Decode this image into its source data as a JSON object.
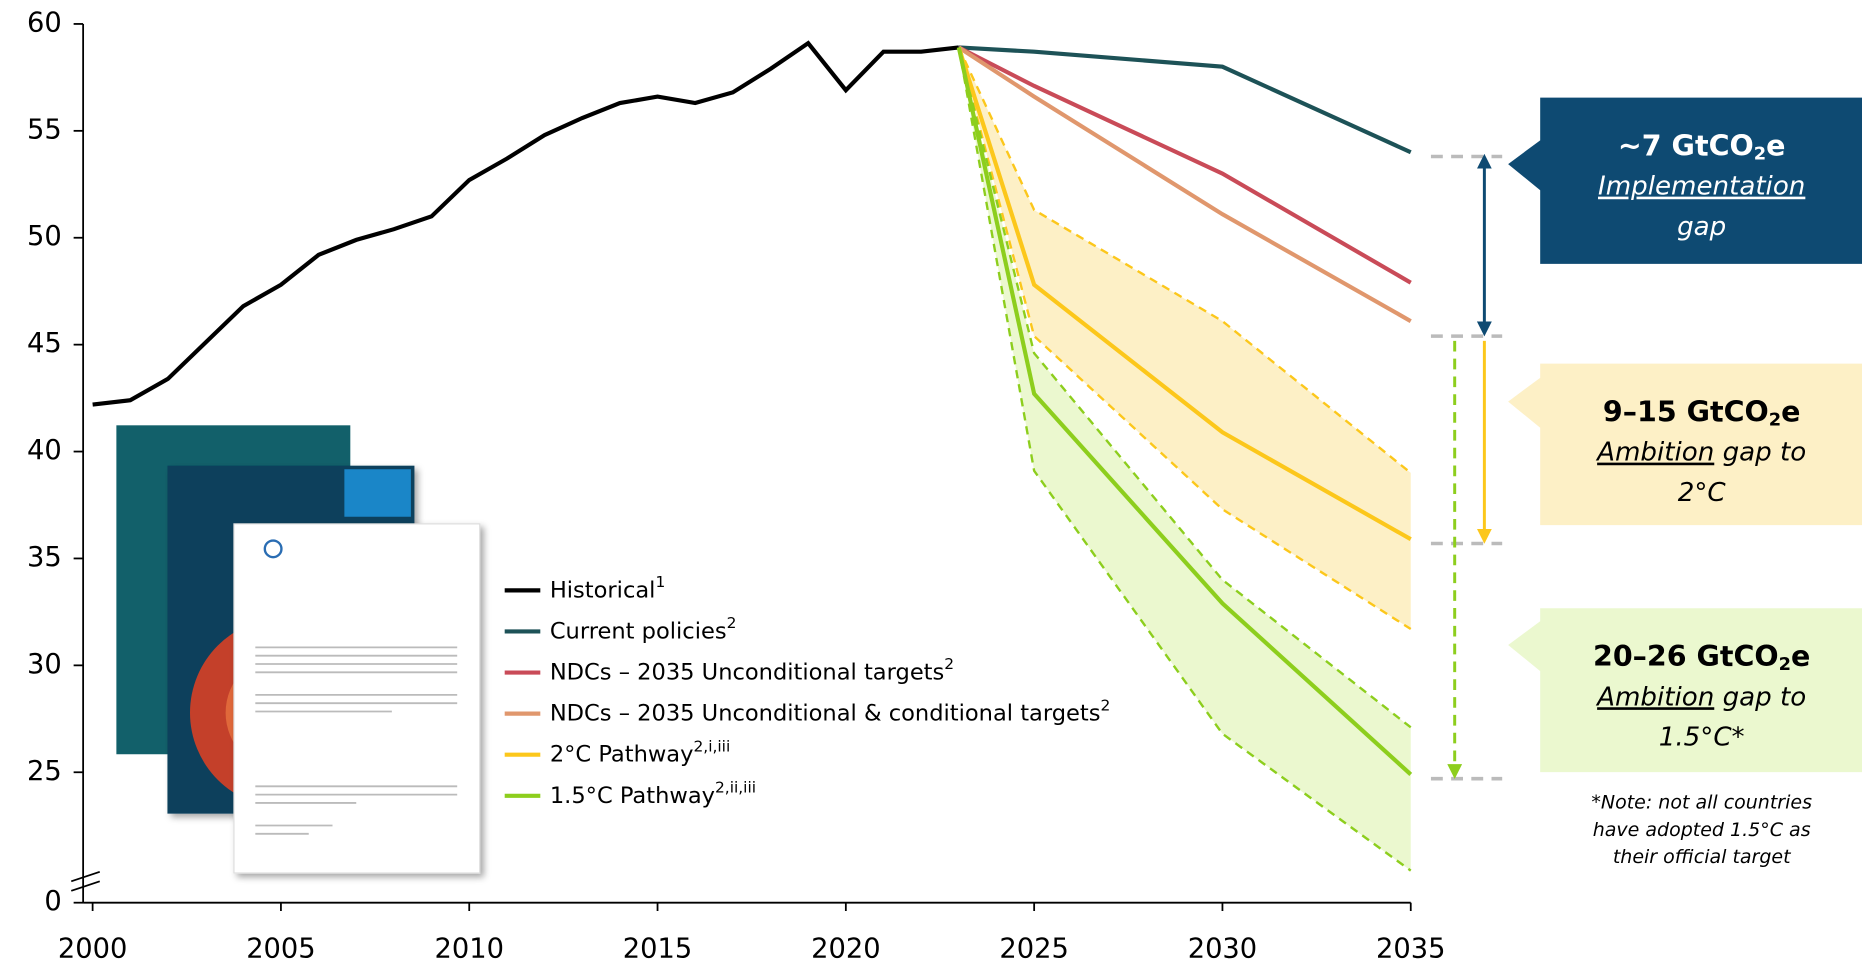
{
  "chart_data": {
    "type": "line",
    "xlim": [
      2000,
      2035
    ],
    "xticks": [
      2000,
      2005,
      2010,
      2015,
      2020,
      2025,
      2030,
      2035
    ],
    "ylim": [
      18.9,
      60
    ],
    "yticks": [
      0,
      25,
      30,
      35,
      40,
      45,
      50,
      55,
      60
    ],
    "axis_break": true,
    "series": [
      {
        "name": "Historical",
        "note": "1",
        "color": "#000000",
        "x": [
          2000,
          2001,
          2002,
          2003,
          2004,
          2005,
          2006,
          2007,
          2008,
          2009,
          2010,
          2011,
          2012,
          2013,
          2014,
          2015,
          2016,
          2017,
          2018,
          2019,
          2020,
          2021,
          2022,
          2023
        ],
        "values": [
          42.2,
          42.4,
          43.4,
          45.1,
          46.8,
          47.8,
          49.2,
          49.9,
          50.4,
          51.0,
          52.7,
          53.7,
          54.8,
          55.6,
          56.3,
          56.6,
          56.3,
          56.8,
          57.9,
          59.1,
          56.9,
          58.7,
          58.7,
          58.9
        ]
      },
      {
        "name": "Current policies",
        "note": "2",
        "color": "#1d5257",
        "x": [
          2023,
          2025,
          2030,
          2035
        ],
        "values": [
          58.9,
          58.7,
          58.0,
          54.0
        ]
      },
      {
        "name": "NDCs – 2035 Unconditional targets",
        "note": "2",
        "color": "#c94b58",
        "x": [
          2023,
          2025,
          2030,
          2035
        ],
        "values": [
          58.9,
          57.1,
          53.0,
          47.9
        ]
      },
      {
        "name": "NDCs – 2035 Unconditional & conditional targets",
        "note": "2",
        "color": "#e0976d",
        "x": [
          2023,
          2025,
          2030,
          2035
        ],
        "values": [
          58.9,
          56.6,
          51.1,
          46.1
        ]
      },
      {
        "name": "2°C Pathway",
        "note": "2,i,iii",
        "color": "#fcc71b",
        "x": [
          2023,
          2025,
          2030,
          2035
        ],
        "values": [
          58.9,
          47.8,
          40.9,
          35.9
        ]
      },
      {
        "name": "1.5°C Pathway",
        "note": "2,ii,iii",
        "color": "#8dce1d",
        "x": [
          2023,
          2025,
          2030,
          2035
        ],
        "values": [
          58.9,
          42.7,
          32.9,
          24.9
        ]
      }
    ],
    "bands": [
      {
        "color": "#fdf0c6",
        "edge_color": "#fcc71b",
        "x": [
          2023,
          2025,
          2030,
          2035
        ],
        "upper": [
          58.9,
          51.3,
          46.1,
          39.0
        ],
        "lower": [
          58.9,
          45.4,
          37.3,
          31.7
        ]
      },
      {
        "color": "#ebf8cf",
        "edge_color": "#8dce1d",
        "x": [
          2023,
          2025,
          2030,
          2035
        ],
        "upper": [
          58.9,
          44.6,
          34.0,
          27.1
        ],
        "lower": [
          58.9,
          39.1,
          26.8,
          20.4
        ]
      }
    ],
    "levels": [
      53.8,
      45.4,
      35.7,
      24.7
    ],
    "annotations": [
      {
        "title": "~7 GtCO",
        "title_sub": "2",
        "title_end": "e",
        "box_color": "#0e4a72",
        "text_color": "#ffffff",
        "lines": [
          [
            {
              "text": "Implementation",
              "underline": true
            }
          ],
          [
            {
              "text": "gap"
            }
          ]
        ],
        "from": 53.8,
        "to": 45.4,
        "arrow_color": "#0e4a72",
        "dashed": false
      },
      {
        "title": "9–15 GtCO",
        "title_sub": "2",
        "title_end": "e",
        "box_color": "#fdf0c6",
        "text_color": "#000000",
        "lines": [
          [
            {
              "text": "Ambition",
              "underline": true
            },
            {
              "text": " gap to"
            }
          ],
          [
            {
              "text": "2°C"
            }
          ]
        ],
        "from": 45.4,
        "to": 35.7,
        "arrow_color": "#fcc71b",
        "dashed": false
      },
      {
        "title": "20–26 GtCO",
        "title_sub": "2",
        "title_end": "e",
        "box_color": "#ebf8cf",
        "text_color": "#000000",
        "lines": [
          [
            {
              "text": "Ambition",
              "underline": true
            },
            {
              "text": " gap to"
            }
          ],
          [
            {
              "text": "1.5°C*"
            }
          ]
        ],
        "from": 45.4,
        "to": 24.7,
        "arrow_color": "#8dce1d",
        "dashed": true
      }
    ],
    "note": [
      "*Note: not all countries",
      "have adopted 1.5°C as",
      "their official target"
    ]
  }
}
